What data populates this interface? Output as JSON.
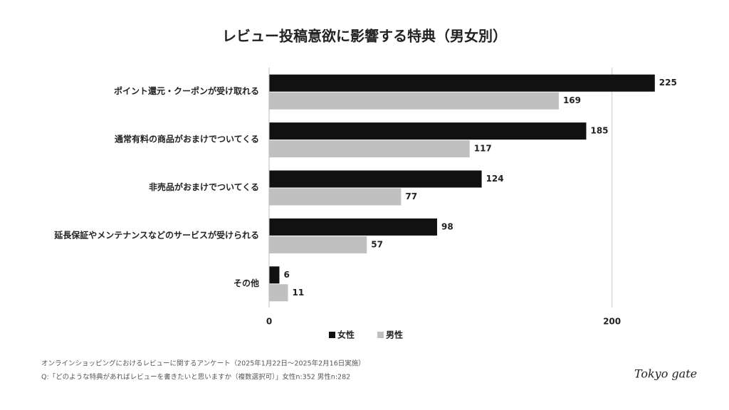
{
  "chart_data": {
    "type": "hbar",
    "title": "レビュー投稿意欲に影響する特典（男女別）",
    "categories": [
      "ポイント還元・クーポンが受け取れる",
      "通常有料の商品がおまけでついてくる",
      "非売品がおまけでついてくる",
      "延長保証やメンテナンスなどのサービスが受けられる",
      "その他"
    ],
    "series": [
      {
        "name": "女性",
        "color": "#111111",
        "values": [
          225,
          185,
          124,
          98,
          6
        ]
      },
      {
        "name": "男性",
        "color": "#c0c0c0",
        "values": [
          169,
          117,
          77,
          57,
          11
        ]
      }
    ],
    "xlim": [
      0,
      250
    ],
    "xticks": [
      0,
      200
    ],
    "grid": true,
    "legend": "bottom",
    "notes": [
      "オンラインショッピングにおけるレビューに関するアンケート（2025年1月22日〜2025年2月16日実施）",
      "Q:「どのような特典があればレビューを書きたいと思いますか（複数選択可）」女性n:352 男性n:282"
    ],
    "logo": "Tokyo gate"
  }
}
